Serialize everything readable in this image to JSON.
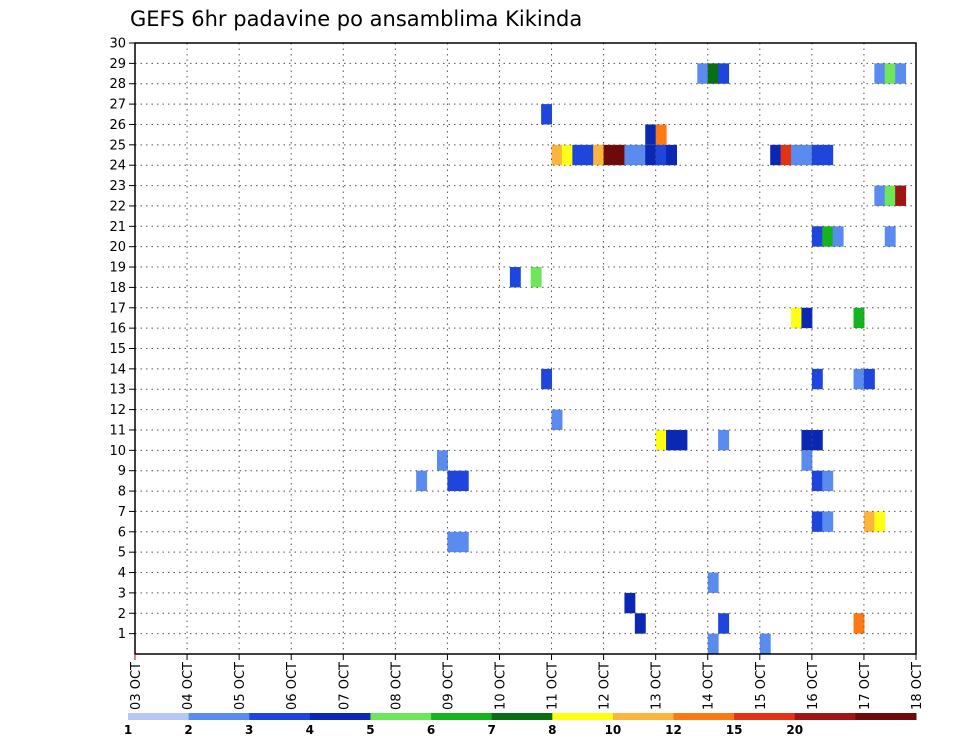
{
  "chart_data": {
    "type": "heatmap",
    "title": "GEFS 6hr padavine po ansamblima Kikinda",
    "xlabel": "",
    "ylabel": "",
    "x_ticks": [
      "03 OCT",
      "04 OCT",
      "05 OCT",
      "06 OCT",
      "07 OCT",
      "08 OCT",
      "09 OCT",
      "10 OCT",
      "11 OCT",
      "12 OCT",
      "13 OCT",
      "14 OCT",
      "15 OCT",
      "16 OCT",
      "17 OCT",
      "18 OCT"
    ],
    "x_range_days": [
      3,
      18
    ],
    "y_ticks": [
      1,
      2,
      3,
      4,
      5,
      6,
      7,
      8,
      9,
      10,
      11,
      12,
      13,
      14,
      15,
      16,
      17,
      18,
      19,
      20,
      21,
      22,
      23,
      24,
      25,
      26,
      27,
      28,
      29,
      30
    ],
    "y_range": [
      0,
      30
    ],
    "grid": true,
    "colorbar": {
      "placement": "bottom",
      "labels": [
        "1",
        "2",
        "3",
        "4",
        "5",
        "6",
        "7",
        "8",
        "10",
        "12",
        "15",
        "20"
      ],
      "colors": [
        "#b4c8f5",
        "#5a8cf0",
        "#1e46dc",
        "#0a28b4",
        "#6ee65a",
        "#14b41e",
        "#0a6e14",
        "#ffff14",
        "#ffb43c",
        "#ff7814",
        "#e63214",
        "#a01414",
        "#6e0a0a"
      ]
    },
    "cells": [
      {
        "d": 13.8,
        "m": 29,
        "c": 1
      },
      {
        "d": 14.0,
        "m": 29,
        "c": 6
      },
      {
        "d": 14.2,
        "m": 29,
        "c": 2
      },
      {
        "d": 17.2,
        "m": 29,
        "c": 1
      },
      {
        "d": 17.4,
        "m": 29,
        "c": 4
      },
      {
        "d": 17.6,
        "m": 29,
        "c": 1
      },
      {
        "d": 10.8,
        "m": 27,
        "c": 2
      },
      {
        "d": 12.8,
        "m": 26,
        "c": 3
      },
      {
        "d": 13.0,
        "m": 26,
        "c": 9
      },
      {
        "d": 11.0,
        "m": 25,
        "c": 8
      },
      {
        "d": 11.2,
        "m": 25,
        "c": 7
      },
      {
        "d": 11.4,
        "m": 25,
        "c": 2
      },
      {
        "d": 11.6,
        "m": 25,
        "c": 2
      },
      {
        "d": 11.8,
        "m": 25,
        "c": 8
      },
      {
        "d": 12.0,
        "m": 25,
        "c": 12
      },
      {
        "d": 12.2,
        "m": 25,
        "c": 12
      },
      {
        "d": 12.4,
        "m": 25,
        "c": 1
      },
      {
        "d": 12.6,
        "m": 25,
        "c": 1
      },
      {
        "d": 12.8,
        "m": 25,
        "c": 3
      },
      {
        "d": 13.0,
        "m": 25,
        "c": 2
      },
      {
        "d": 13.2,
        "m": 25,
        "c": 3
      },
      {
        "d": 15.2,
        "m": 25,
        "c": 3
      },
      {
        "d": 15.4,
        "m": 25,
        "c": 10
      },
      {
        "d": 15.6,
        "m": 25,
        "c": 1
      },
      {
        "d": 15.8,
        "m": 25,
        "c": 1
      },
      {
        "d": 16.0,
        "m": 25,
        "c": 2
      },
      {
        "d": 16.2,
        "m": 25,
        "c": 2
      },
      {
        "d": 17.2,
        "m": 23,
        "c": 1
      },
      {
        "d": 17.4,
        "m": 23,
        "c": 4
      },
      {
        "d": 17.6,
        "m": 23,
        "c": 11
      },
      {
        "d": 16.0,
        "m": 21,
        "c": 2
      },
      {
        "d": 16.2,
        "m": 21,
        "c": 5
      },
      {
        "d": 16.4,
        "m": 21,
        "c": 1
      },
      {
        "d": 17.4,
        "m": 21,
        "c": 1
      },
      {
        "d": 10.2,
        "m": 19,
        "c": 2
      },
      {
        "d": 10.6,
        "m": 19,
        "c": 4
      },
      {
        "d": 15.6,
        "m": 17,
        "c": 7
      },
      {
        "d": 15.8,
        "m": 17,
        "c": 3
      },
      {
        "d": 16.8,
        "m": 17,
        "c": 5
      },
      {
        "d": 10.8,
        "m": 14,
        "c": 2
      },
      {
        "d": 16.0,
        "m": 14,
        "c": 2
      },
      {
        "d": 16.8,
        "m": 14,
        "c": 1
      },
      {
        "d": 17.0,
        "m": 14,
        "c": 2
      },
      {
        "d": 11.0,
        "m": 12,
        "c": 1
      },
      {
        "d": 13.0,
        "m": 11,
        "c": 7
      },
      {
        "d": 13.2,
        "m": 11,
        "c": 3
      },
      {
        "d": 13.4,
        "m": 11,
        "c": 3
      },
      {
        "d": 14.2,
        "m": 11,
        "c": 1
      },
      {
        "d": 15.8,
        "m": 11,
        "c": 3
      },
      {
        "d": 16.0,
        "m": 11,
        "c": 3
      },
      {
        "d": 15.8,
        "m": 10,
        "c": 1
      },
      {
        "d": 8.8,
        "m": 10,
        "c": 1
      },
      {
        "d": 8.4,
        "m": 9,
        "c": 1
      },
      {
        "d": 9.0,
        "m": 9,
        "c": 2
      },
      {
        "d": 9.2,
        "m": 9,
        "c": 2
      },
      {
        "d": 16.0,
        "m": 9,
        "c": 2
      },
      {
        "d": 16.2,
        "m": 9,
        "c": 1
      },
      {
        "d": 16.0,
        "m": 7,
        "c": 2
      },
      {
        "d": 16.2,
        "m": 7,
        "c": 1
      },
      {
        "d": 17.0,
        "m": 7,
        "c": 8
      },
      {
        "d": 17.2,
        "m": 7,
        "c": 7
      },
      {
        "d": 9.0,
        "m": 6,
        "c": 1
      },
      {
        "d": 9.2,
        "m": 6,
        "c": 1
      },
      {
        "d": 14.0,
        "m": 4,
        "c": 1
      },
      {
        "d": 12.4,
        "m": 3,
        "c": 3
      },
      {
        "d": 12.6,
        "m": 2,
        "c": 3
      },
      {
        "d": 14.2,
        "m": 2,
        "c": 2
      },
      {
        "d": 16.8,
        "m": 2,
        "c": 9
      },
      {
        "d": 14.0,
        "m": 1,
        "c": 1
      },
      {
        "d": 15.0,
        "m": 1,
        "c": 1
      }
    ]
  }
}
